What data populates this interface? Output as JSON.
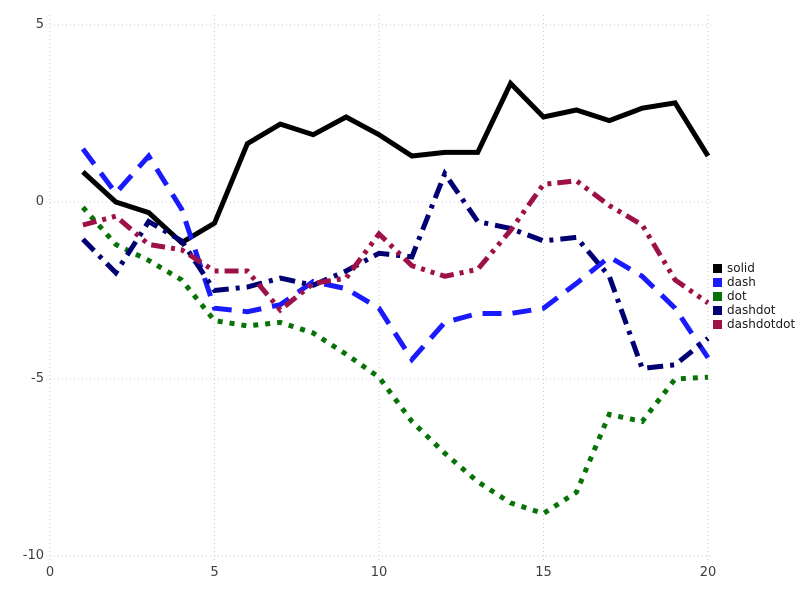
{
  "chart_data": {
    "type": "line",
    "title": "",
    "xlabel": "",
    "ylabel": "",
    "xlim": [
      0,
      20.5
    ],
    "ylim": [
      -10.3,
      5.3
    ],
    "grid": "dotted",
    "grid_color": "#c9c9dd",
    "tick_label_color": "#3d3d3d",
    "background": "#ffffff",
    "legend_position": "right-outside",
    "xticks": [
      0,
      5,
      10,
      15,
      20
    ],
    "yticks": [
      5,
      0,
      -5,
      -10
    ],
    "xtick_labels": [
      "0",
      "5",
      "10",
      "15",
      "20"
    ],
    "ytick_labels": [
      "5",
      "0",
      "-5",
      "-10"
    ],
    "x": [
      1,
      2,
      3,
      4,
      5,
      6,
      7,
      8,
      9,
      10,
      11,
      12,
      13,
      14,
      15,
      16,
      17,
      18,
      19,
      20
    ],
    "series": [
      {
        "name": "solid",
        "color": "#000000",
        "dash": "solid",
        "dash_array": "",
        "values": [
          0.85,
          0.0,
          -0.3,
          -1.15,
          -0.6,
          1.65,
          2.2,
          1.9,
          2.4,
          1.9,
          1.3,
          1.4,
          1.4,
          3.35,
          2.4,
          2.6,
          2.3,
          2.65,
          2.8,
          1.3
        ]
      },
      {
        "name": "dash",
        "color": "#1a1aff",
        "dash": "dash",
        "dash_array": "19 11",
        "values": [
          1.5,
          0.25,
          1.3,
          -0.2,
          -3.0,
          -3.1,
          -2.9,
          -2.25,
          -2.45,
          -3.0,
          -4.45,
          -3.4,
          -3.15,
          -3.15,
          -3.0,
          -2.3,
          -1.55,
          -2.1,
          -3.0,
          -4.4
        ]
      },
      {
        "name": "dot",
        "color": "#077307",
        "dash": "dot",
        "dash_array": "5 7",
        "values": [
          -0.15,
          -1.2,
          -1.65,
          -2.2,
          -3.35,
          -3.5,
          -3.4,
          -3.7,
          -4.3,
          -4.95,
          -6.2,
          -7.1,
          -7.9,
          -8.5,
          -8.8,
          -8.2,
          -6.0,
          -6.2,
          -5.0,
          -4.95
        ]
      },
      {
        "name": "dashdot",
        "color": "#000073",
        "dash": "dashdot",
        "dash_array": "16 7 4 7",
        "values": [
          -1.05,
          -2.0,
          -0.55,
          -1.1,
          -2.5,
          -2.4,
          -2.15,
          -2.35,
          -1.95,
          -1.45,
          -1.55,
          0.8,
          -0.55,
          -0.75,
          -1.1,
          -1.0,
          -2.1,
          -4.7,
          -4.6,
          -3.85
        ]
      },
      {
        "name": "dashdotdot",
        "color": "#9e1148",
        "dash": "dashdotdot",
        "dash_array": "14 6 4 6 4 6",
        "values": [
          -0.65,
          -0.4,
          -1.2,
          -1.35,
          -1.95,
          -1.95,
          -3.05,
          -2.3,
          -2.15,
          -0.9,
          -1.8,
          -2.1,
          -1.9,
          -0.8,
          0.5,
          0.6,
          -0.1,
          -0.65,
          -2.2,
          -2.85
        ]
      }
    ]
  }
}
